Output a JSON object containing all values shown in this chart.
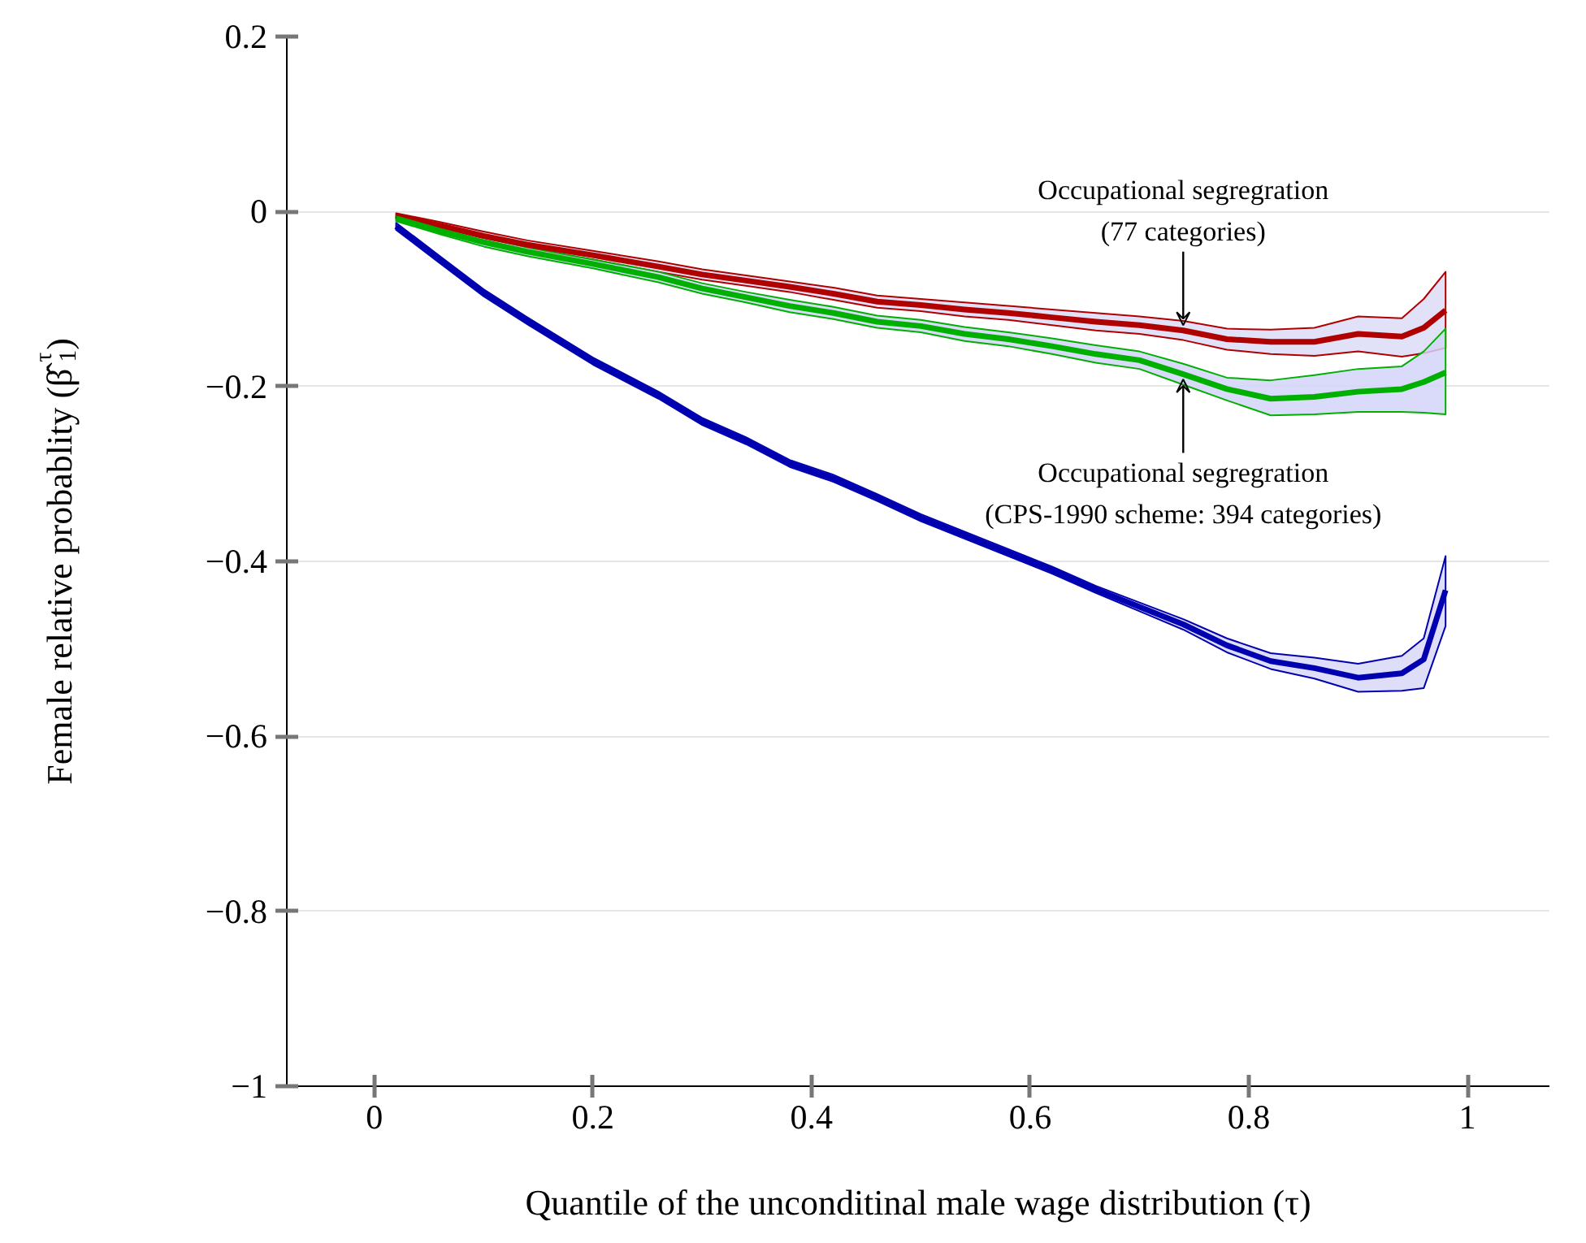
{
  "chart_data": {
    "type": "line",
    "xlabel": "Quantile of the unconditinal male wage distribution (τ)",
    "ylabel": "Female relative probablity (β̂$_{1}$$^{τ}$)",
    "x": [
      0.02,
      0.06,
      0.1,
      0.14,
      0.2,
      0.26,
      0.3,
      0.34,
      0.38,
      0.42,
      0.46,
      0.5,
      0.54,
      0.58,
      0.62,
      0.66,
      0.7,
      0.74,
      0.78,
      0.82,
      0.86,
      0.9,
      0.94,
      0.96,
      0.98
    ],
    "xlim": [
      -0.08,
      1.075
    ],
    "ylim": [
      -1,
      0.2
    ],
    "xticks": [
      0,
      0.2,
      0.4,
      0.6,
      0.8,
      1
    ],
    "yticks": [
      {
        "value": -1,
        "label": "−1"
      },
      {
        "value": -0.8,
        "label": "−0.8"
      },
      {
        "value": -0.6,
        "label": "−0.6"
      },
      {
        "value": -0.4,
        "label": "−0.4"
      },
      {
        "value": -0.2,
        "label": "−0.2"
      },
      0,
      0.2
    ],
    "grid": "y",
    "marker": "none",
    "line_style": "solid",
    "series": [
      {
        "color": "#0000b0",
        "values": [
          -0.017,
          -0.055,
          -0.093,
          -0.125,
          -0.171,
          -0.21,
          -0.24,
          -0.262,
          -0.288,
          -0.305,
          -0.327,
          -0.35,
          -0.37,
          -0.39,
          -0.41,
          -0.432,
          -0.452,
          -0.472,
          -0.496,
          -0.514,
          -0.522,
          -0.533,
          -0.528,
          -0.512,
          -0.433
        ],
        "upper": [
          -0.013,
          -0.051,
          -0.089,
          -0.121,
          -0.167,
          -0.206,
          -0.236,
          -0.258,
          -0.284,
          -0.301,
          -0.323,
          -0.346,
          -0.366,
          -0.386,
          -0.406,
          -0.428,
          -0.447,
          -0.466,
          -0.488,
          -0.505,
          -0.51,
          -0.517,
          -0.508,
          -0.488,
          -0.394
        ],
        "lower": [
          -0.021,
          -0.059,
          -0.097,
          -0.129,
          -0.175,
          -0.214,
          -0.244,
          -0.266,
          -0.292,
          -0.309,
          -0.331,
          -0.354,
          -0.374,
          -0.394,
          -0.414,
          -0.436,
          -0.457,
          -0.478,
          -0.504,
          -0.523,
          -0.534,
          -0.549,
          -0.548,
          -0.545,
          -0.474
        ]
      },
      {
        "color": "#b00000",
        "values": [
          -0.005,
          -0.016,
          -0.028,
          -0.038,
          -0.05,
          -0.063,
          -0.072,
          -0.079,
          -0.086,
          -0.094,
          -0.103,
          -0.107,
          -0.112,
          -0.116,
          -0.121,
          -0.126,
          -0.13,
          -0.136,
          -0.146,
          -0.149,
          -0.149,
          -0.14,
          -0.143,
          -0.133,
          -0.113
        ],
        "upper": [
          -0.002,
          -0.012,
          -0.023,
          -0.033,
          -0.045,
          -0.057,
          -0.066,
          -0.073,
          -0.08,
          -0.087,
          -0.096,
          -0.1,
          -0.104,
          -0.108,
          -0.112,
          -0.116,
          -0.12,
          -0.125,
          -0.134,
          -0.135,
          -0.133,
          -0.12,
          -0.122,
          -0.1,
          -0.069
        ],
        "lower": [
          -0.008,
          -0.02,
          -0.033,
          -0.043,
          -0.055,
          -0.069,
          -0.078,
          -0.085,
          -0.092,
          -0.101,
          -0.11,
          -0.114,
          -0.12,
          -0.124,
          -0.13,
          -0.136,
          -0.14,
          -0.147,
          -0.158,
          -0.163,
          -0.165,
          -0.16,
          -0.166,
          -0.162,
          -0.156
        ]
      },
      {
        "color": "#00b000",
        "values": [
          -0.008,
          -0.022,
          -0.035,
          -0.046,
          -0.06,
          -0.075,
          -0.088,
          -0.098,
          -0.108,
          -0.116,
          -0.126,
          -0.131,
          -0.14,
          -0.146,
          -0.154,
          -0.163,
          -0.17,
          -0.186,
          -0.203,
          -0.214,
          -0.212,
          -0.206,
          -0.203,
          -0.195,
          -0.184
        ],
        "upper": [
          -0.005,
          -0.018,
          -0.03,
          -0.041,
          -0.055,
          -0.069,
          -0.082,
          -0.092,
          -0.101,
          -0.109,
          -0.119,
          -0.124,
          -0.132,
          -0.138,
          -0.145,
          -0.153,
          -0.16,
          -0.174,
          -0.19,
          -0.193,
          -0.187,
          -0.18,
          -0.177,
          -0.16,
          -0.134
        ],
        "lower": [
          -0.011,
          -0.026,
          -0.04,
          -0.051,
          -0.065,
          -0.081,
          -0.094,
          -0.104,
          -0.115,
          -0.123,
          -0.133,
          -0.138,
          -0.148,
          -0.154,
          -0.163,
          -0.173,
          -0.18,
          -0.198,
          -0.216,
          -0.233,
          -0.232,
          -0.229,
          -0.229,
          -0.23,
          -0.232
        ]
      }
    ],
    "annotations": [
      {
        "text": "Occupational segregration\n(77 categories)",
        "x": 0.74,
        "y": -0.136
      },
      {
        "text": "Occupational segregration\n(CPS-1990 scheme: 394 categories)",
        "x": 0.74,
        "y": -0.186
      }
    ]
  }
}
